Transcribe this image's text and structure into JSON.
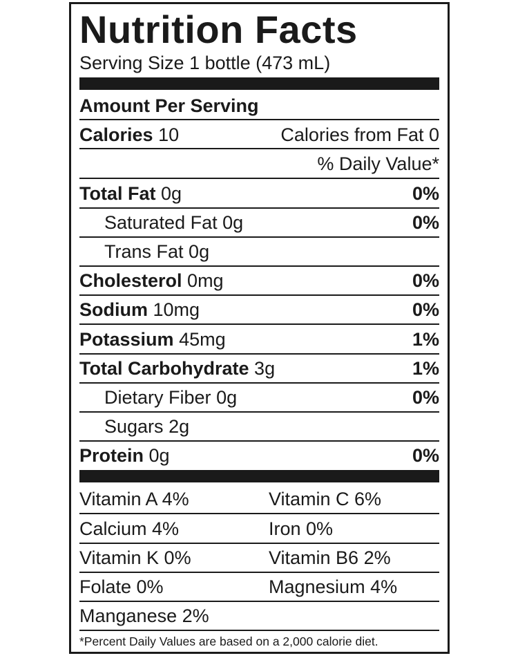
{
  "title": "Nutrition Facts",
  "serving_size": "Serving Size 1 bottle (473 mL)",
  "amount_per_serving": "Amount Per Serving",
  "calories": {
    "label": "Calories",
    "value": "10",
    "from_fat": "Calories from Fat 0"
  },
  "daily_value_header": "% Daily Value*",
  "nutrients": [
    {
      "name": "Total Fat",
      "amount": "0g",
      "dv": "0%"
    },
    {
      "name": "Saturated Fat",
      "amount": "0g",
      "dv": "0%"
    },
    {
      "name": "Trans Fat",
      "amount": "0g",
      "dv": ""
    },
    {
      "name": "Cholesterol",
      "amount": "0mg",
      "dv": "0%"
    },
    {
      "name": "Sodium",
      "amount": "10mg",
      "dv": "0%"
    },
    {
      "name": "Potassium",
      "amount": "45mg",
      "dv": "1%"
    },
    {
      "name": "Total Carbohydrate",
      "amount": "3g",
      "dv": "1%"
    },
    {
      "name": "Dietary Fiber",
      "amount": "0g",
      "dv": "0%"
    },
    {
      "name": "Sugars",
      "amount": "2g",
      "dv": ""
    },
    {
      "name": "Protein",
      "amount": "0g",
      "dv": "0%"
    }
  ],
  "vitamins": [
    [
      "Vitamin A 4%",
      "Vitamin C 6%"
    ],
    [
      "Calcium 4%",
      "Iron 0%"
    ],
    [
      "Vitamin K 0%",
      "Vitamin B6 2%"
    ],
    [
      "Folate 0%",
      "Magnesium 4%"
    ],
    [
      "Manganese 2%",
      ""
    ]
  ],
  "footnote": "*Percent Daily Values are based on a 2,000 calorie diet."
}
